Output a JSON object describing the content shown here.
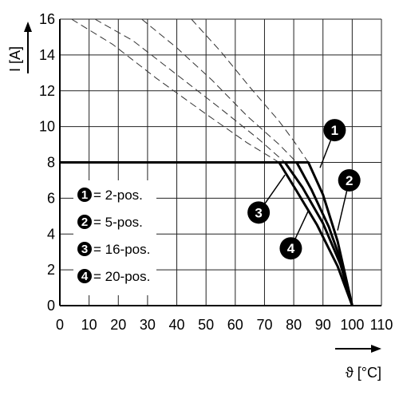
{
  "chart_data": {
    "type": "line",
    "xlabel": "ϑ [°C]",
    "ylabel": "I [A]",
    "xlim": [
      0,
      110
    ],
    "ylim": [
      0,
      16
    ],
    "x_ticks": [
      0,
      10,
      20,
      30,
      40,
      50,
      60,
      70,
      80,
      90,
      100,
      110
    ],
    "y_ticks": [
      0,
      2,
      4,
      6,
      8,
      10,
      12,
      14,
      16
    ],
    "grid": true,
    "series": [
      {
        "name": "2-pos.",
        "id": "1",
        "solid": {
          "x": [
            0,
            85,
            90,
            95,
            100
          ],
          "y": [
            8,
            8,
            6.2,
            3.6,
            0
          ]
        },
        "dashed": {
          "x": [
            45,
            55,
            65,
            75,
            80,
            85
          ],
          "y": [
            16,
            14.2,
            12.2,
            10.3,
            9.2,
            8
          ]
        }
      },
      {
        "name": "5-pos.",
        "id": "2",
        "solid": {
          "x": [
            0,
            81,
            86,
            92,
            97,
            100
          ],
          "y": [
            8,
            8,
            6.5,
            4.4,
            2.1,
            0
          ]
        },
        "dashed": {
          "x": [
            28,
            40,
            52,
            64,
            75,
            81
          ],
          "y": [
            16,
            14.4,
            12.6,
            10.6,
            9,
            8
          ]
        }
      },
      {
        "name": "16-pos.",
        "id": "3",
        "solid": {
          "x": [
            0,
            77,
            83,
            90,
            96,
            100
          ],
          "y": [
            8,
            8,
            6.6,
            4.6,
            2.3,
            0
          ]
        },
        "dashed": {
          "x": [
            12,
            25,
            40,
            55,
            68,
            77
          ],
          "y": [
            16,
            14.8,
            12.9,
            11,
            9.3,
            8
          ]
        }
      },
      {
        "name": "20-pos.",
        "id": "4",
        "solid": {
          "x": [
            0,
            75,
            81,
            88,
            95,
            100
          ],
          "y": [
            8,
            8,
            6.4,
            4.5,
            2.2,
            0
          ]
        },
        "dashed": {
          "x": [
            4,
            18,
            33,
            50,
            64,
            75
          ],
          "y": [
            16,
            14.6,
            12.7,
            10.7,
            9.1,
            8
          ]
        }
      }
    ],
    "legend": {
      "placement": "center-left",
      "entries": [
        {
          "id": "1",
          "label": "= 2-pos."
        },
        {
          "id": "2",
          "label": "= 5-pos."
        },
        {
          "id": "3",
          "label": "= 16-pos."
        },
        {
          "id": "4",
          "label": "= 20-pos."
        }
      ]
    },
    "markers": [
      {
        "id": "1",
        "x": 94,
        "y": 9.8,
        "tx": 89,
        "ty": 7.7
      },
      {
        "id": "2",
        "x": 99,
        "y": 7,
        "tx": 95,
        "ty": 4.2
      },
      {
        "id": "3",
        "x": 68,
        "y": 5.2,
        "tx": 77,
        "ty": 7.3
      },
      {
        "id": "4",
        "x": 79,
        "y": 3.2,
        "tx": 85,
        "ty": 5.3
      }
    ]
  }
}
